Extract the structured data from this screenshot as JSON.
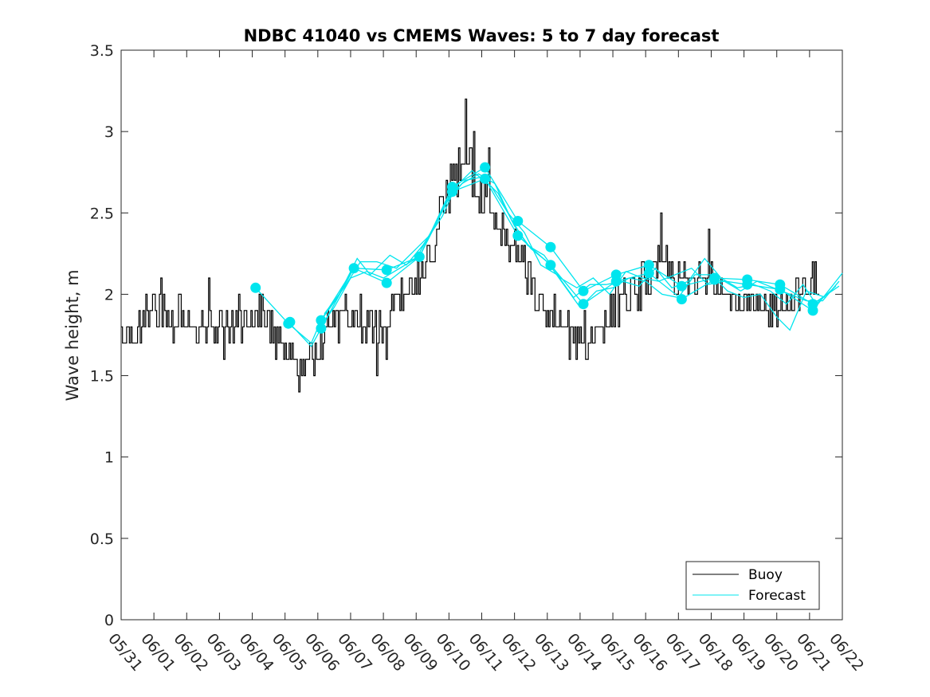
{
  "chart_data": {
    "type": "line",
    "title": "NDBC 41040 vs CMEMS Waves: 5 to 7 day forecast",
    "xlabel": "",
    "ylabel": "Wave height, m",
    "ylim": [
      0,
      3.5
    ],
    "xlim": [
      "05/31",
      "06/22"
    ],
    "x_ticks": [
      "05/31",
      "06/01",
      "06/02",
      "06/03",
      "06/04",
      "06/05",
      "06/06",
      "06/07",
      "06/08",
      "06/09",
      "06/10",
      "06/11",
      "06/12",
      "06/13",
      "06/14",
      "06/15",
      "06/16",
      "06/17",
      "06/18",
      "06/19",
      "06/20",
      "06/21",
      "06/22"
    ],
    "y_ticks": [
      0,
      0.5,
      1,
      1.5,
      2,
      2.5,
      3,
      3.5
    ],
    "y_tick_labels": [
      "0",
      "0.5",
      "1",
      "1.5",
      "2",
      "2.5",
      "3",
      "3.5"
    ],
    "grid": false,
    "legend": {
      "placement": "bottom-right",
      "entries": [
        "Buoy",
        "Forecast"
      ]
    },
    "colors": {
      "buoy": "#000000",
      "forecast": "#00e5ee"
    },
    "buoy_anchor_days": [
      [
        0.0,
        1.72
      ],
      [
        0.5,
        1.74
      ],
      [
        1.0,
        1.94
      ],
      [
        1.5,
        1.86
      ],
      [
        2.0,
        1.82
      ],
      [
        2.5,
        1.8
      ],
      [
        3.0,
        1.74
      ],
      [
        3.5,
        1.84
      ],
      [
        4.0,
        1.86
      ],
      [
        4.5,
        1.8
      ],
      [
        5.0,
        1.66
      ],
      [
        5.3,
        1.58
      ],
      [
        5.7,
        1.62
      ],
      [
        6.0,
        1.66
      ],
      [
        6.3,
        1.82
      ],
      [
        7.0,
        1.85
      ],
      [
        7.5,
        1.84
      ],
      [
        8.0,
        1.72
      ],
      [
        8.3,
        1.92
      ],
      [
        9.0,
        2.05
      ],
      [
        9.3,
        2.15
      ],
      [
        9.7,
        2.4
      ],
      [
        10.0,
        2.62
      ],
      [
        10.3,
        2.78
      ],
      [
        10.6,
        2.82
      ],
      [
        10.8,
        2.7
      ],
      [
        11.0,
        2.6
      ],
      [
        11.3,
        2.5
      ],
      [
        11.6,
        2.36
      ],
      [
        12.0,
        2.28
      ],
      [
        12.3,
        2.18
      ],
      [
        12.6,
        1.96
      ],
      [
        13.0,
        1.88
      ],
      [
        13.4,
        1.8
      ],
      [
        13.8,
        1.72
      ],
      [
        14.0,
        1.72
      ],
      [
        14.3,
        1.77
      ],
      [
        14.7,
        1.8
      ],
      [
        15.0,
        1.92
      ],
      [
        15.3,
        1.96
      ],
      [
        15.7,
        2.04
      ],
      [
        16.0,
        2.08
      ],
      [
        16.3,
        2.12
      ],
      [
        16.5,
        2.2
      ],
      [
        16.8,
        2.1
      ],
      [
        17.0,
        2.08
      ],
      [
        17.5,
        2.06
      ],
      [
        17.8,
        2.16
      ],
      [
        18.0,
        2.14
      ],
      [
        18.5,
        2.0
      ],
      [
        19.0,
        1.92
      ],
      [
        19.5,
        1.9
      ],
      [
        20.0,
        1.93
      ],
      [
        20.5,
        1.98
      ],
      [
        21.0,
        2.02
      ],
      [
        21.3,
        2.1
      ]
    ],
    "buoy_spike_days": [
      [
        1.2,
        2.1
      ],
      [
        2.65,
        2.1
      ],
      [
        4.2,
        2.0
      ],
      [
        5.4,
        1.4
      ],
      [
        7.8,
        1.5
      ],
      [
        10.5,
        3.2
      ],
      [
        10.75,
        3.0
      ],
      [
        11.2,
        2.9
      ],
      [
        13.65,
        1.6
      ],
      [
        14.2,
        1.6
      ],
      [
        16.45,
        2.5
      ],
      [
        17.9,
        2.4
      ],
      [
        21.1,
        2.2
      ]
    ],
    "forecast_series": [
      {
        "values": [
          [
            4.1,
            2.04
          ],
          [
            5.1,
            1.82
          ],
          [
            5.8,
            1.7
          ],
          [
            6.1,
            1.84
          ],
          [
            7.1,
            2.16
          ],
          [
            8.1,
            2.15
          ],
          [
            9.1,
            2.23
          ],
          [
            10.1,
            2.66
          ],
          [
            11.1,
            2.78
          ],
          [
            12.1,
            2.45
          ],
          [
            13.1,
            2.29
          ],
          [
            14.1,
            2.02
          ],
          [
            15.1,
            2.12
          ],
          [
            16.1,
            2.18
          ],
          [
            17.1,
            2.05
          ],
          [
            18.1,
            2.1
          ],
          [
            19.1,
            2.09
          ],
          [
            20.1,
            2.06
          ],
          [
            21.1,
            1.94
          ],
          [
            21.9,
            2.05
          ]
        ]
      },
      {
        "values": [
          [
            5.1,
            1.83
          ],
          [
            5.8,
            1.68
          ],
          [
            6.1,
            1.79
          ],
          [
            7.1,
            2.16
          ],
          [
            8.1,
            2.07
          ],
          [
            9.1,
            2.23
          ],
          [
            10.1,
            2.63
          ],
          [
            11.1,
            2.71
          ],
          [
            12.1,
            2.36
          ],
          [
            13.1,
            2.18
          ],
          [
            14.1,
            1.94
          ],
          [
            15.1,
            2.08
          ],
          [
            16.1,
            2.13
          ],
          [
            17.1,
            1.97
          ],
          [
            18.1,
            2.09
          ],
          [
            19.1,
            2.06
          ],
          [
            20.1,
            2.03
          ],
          [
            21.1,
            1.9
          ],
          [
            22.0,
            2.13
          ]
        ]
      },
      {
        "values": [
          [
            6.1,
            1.84
          ],
          [
            6.6,
            1.98
          ],
          [
            7.2,
            2.22
          ],
          [
            7.6,
            2.12
          ],
          [
            8.2,
            2.24
          ],
          [
            8.7,
            2.18
          ],
          [
            9.2,
            2.3
          ],
          [
            9.8,
            2.48
          ],
          [
            10.2,
            2.66
          ],
          [
            10.7,
            2.76
          ],
          [
            11.3,
            2.66
          ],
          [
            11.8,
            2.5
          ],
          [
            12.3,
            2.38
          ],
          [
            12.8,
            2.18
          ],
          [
            13.3,
            2.12
          ],
          [
            13.8,
            1.98
          ],
          [
            14.3,
            2.06
          ],
          [
            14.8,
            2.06
          ],
          [
            15.3,
            2.08
          ],
          [
            15.8,
            2.05
          ],
          [
            16.3,
            2.16
          ],
          [
            16.8,
            2.04
          ],
          [
            17.3,
            2.08
          ],
          [
            17.8,
            2.22
          ],
          [
            18.3,
            2.1
          ],
          [
            18.8,
            2.04
          ],
          [
            19.3,
            2.06
          ],
          [
            19.8,
            2.02
          ],
          [
            20.3,
            1.94
          ],
          [
            20.8,
            2.06
          ],
          [
            21.2,
            1.94
          ],
          [
            21.8,
            2.05
          ]
        ]
      },
      {
        "values": [
          [
            6.0,
            1.78
          ],
          [
            6.5,
            1.92
          ],
          [
            7.0,
            2.1
          ],
          [
            7.5,
            2.14
          ],
          [
            8.0,
            2.1
          ],
          [
            8.5,
            2.16
          ],
          [
            9.0,
            2.22
          ],
          [
            9.5,
            2.4
          ],
          [
            10.0,
            2.6
          ],
          [
            10.5,
            2.7
          ],
          [
            11.0,
            2.72
          ],
          [
            11.5,
            2.62
          ],
          [
            12.0,
            2.42
          ],
          [
            12.5,
            2.28
          ],
          [
            13.0,
            2.2
          ],
          [
            13.5,
            2.06
          ],
          [
            14.0,
            1.92
          ],
          [
            14.5,
            2.02
          ],
          [
            15.0,
            2.04
          ],
          [
            15.5,
            2.1
          ],
          [
            16.0,
            2.08
          ],
          [
            16.5,
            2.0
          ],
          [
            17.0,
            1.98
          ],
          [
            17.5,
            2.12
          ],
          [
            18.0,
            2.12
          ],
          [
            18.5,
            2.02
          ],
          [
            19.0,
            1.98
          ],
          [
            19.5,
            2.0
          ],
          [
            20.0,
            1.86
          ],
          [
            20.4,
            1.78
          ],
          [
            20.9,
            2.02
          ],
          [
            21.5,
            1.98
          ]
        ]
      },
      {
        "values": [
          [
            6.2,
            1.88
          ],
          [
            6.8,
            2.04
          ],
          [
            7.3,
            2.2
          ],
          [
            7.8,
            2.2
          ],
          [
            8.4,
            2.16
          ],
          [
            8.9,
            2.26
          ],
          [
            9.4,
            2.36
          ],
          [
            9.9,
            2.56
          ],
          [
            10.4,
            2.68
          ],
          [
            10.9,
            2.74
          ],
          [
            11.4,
            2.68
          ],
          [
            11.9,
            2.46
          ],
          [
            12.4,
            2.3
          ],
          [
            12.9,
            2.24
          ],
          [
            13.4,
            2.1
          ],
          [
            13.9,
            2.04
          ],
          [
            14.4,
            2.1
          ],
          [
            14.9,
            2.0
          ],
          [
            15.4,
            2.14
          ],
          [
            15.9,
            2.1
          ],
          [
            16.4,
            2.08
          ],
          [
            16.9,
            2.12
          ],
          [
            17.4,
            2.16
          ],
          [
            17.9,
            2.06
          ],
          [
            18.4,
            2.08
          ],
          [
            18.9,
            2.02
          ],
          [
            19.4,
            2.08
          ],
          [
            19.9,
            2.04
          ],
          [
            20.4,
            2.0
          ],
          [
            20.9,
            1.96
          ],
          [
            21.4,
            1.96
          ],
          [
            21.9,
            2.08
          ]
        ]
      }
    ],
    "forecast_markers": [
      [
        4.1,
        2.04
      ],
      [
        5.1,
        1.82
      ],
      [
        5.15,
        1.83
      ],
      [
        6.1,
        1.84
      ],
      [
        6.1,
        1.79
      ],
      [
        7.1,
        2.16
      ],
      [
        8.1,
        2.15
      ],
      [
        8.1,
        2.07
      ],
      [
        9.1,
        2.23
      ],
      [
        10.1,
        2.66
      ],
      [
        10.1,
        2.63
      ],
      [
        11.1,
        2.78
      ],
      [
        11.1,
        2.71
      ],
      [
        12.1,
        2.45
      ],
      [
        12.1,
        2.36
      ],
      [
        13.1,
        2.29
      ],
      [
        13.1,
        2.18
      ],
      [
        14.1,
        2.02
      ],
      [
        14.1,
        1.94
      ],
      [
        15.1,
        2.12
      ],
      [
        15.1,
        2.08
      ],
      [
        16.1,
        2.18
      ],
      [
        16.1,
        2.13
      ],
      [
        17.1,
        2.05
      ],
      [
        17.1,
        1.97
      ],
      [
        18.1,
        2.1
      ],
      [
        18.1,
        2.09
      ],
      [
        19.1,
        2.09
      ],
      [
        19.1,
        2.06
      ],
      [
        20.1,
        2.06
      ],
      [
        20.1,
        2.03
      ],
      [
        21.1,
        1.94
      ],
      [
        21.1,
        1.9
      ]
    ]
  }
}
